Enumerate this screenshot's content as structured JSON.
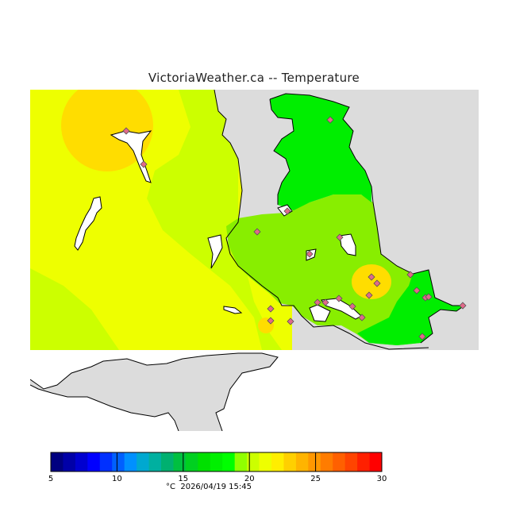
{
  "title": "VictoriaWeather.ca -- Temperature",
  "colors": {
    "land_low": "#88ee00",
    "land_green": "#00ee00",
    "yellow_green": "#ccff00",
    "yellow": "#eeff00",
    "warm_yellow": "#ffee00",
    "gold": "#ffdd00",
    "no_data": "#dcdcdc",
    "water_white": "#ffffff",
    "coast": "#000000",
    "station_fill": "#e06a8a"
  },
  "legend": {
    "colors": [
      "#000080",
      "#0000a8",
      "#0000d0",
      "#0000ff",
      "#0030ff",
      "#0060ff",
      "#0090ff",
      "#00a8d0",
      "#00b0a0",
      "#00b070",
      "#00c040",
      "#00d020",
      "#00e000",
      "#00f000",
      "#00ff00",
      "#90ff00",
      "#ccff00",
      "#eeff00",
      "#ffee00",
      "#ffd000",
      "#ffb400",
      "#ff9800",
      "#ff7c00",
      "#ff6000",
      "#ff4400",
      "#ff2000",
      "#ff0000"
    ],
    "min": 5,
    "max": 30,
    "ticks": [
      "5",
      "10",
      "15",
      "20",
      "25",
      "30"
    ],
    "tick_values": [
      5,
      10,
      15,
      20,
      25,
      30
    ]
  },
  "footer": {
    "unit": "°C",
    "timestamp": "2026/04/19 15:45"
  },
  "stations_count": 24
}
